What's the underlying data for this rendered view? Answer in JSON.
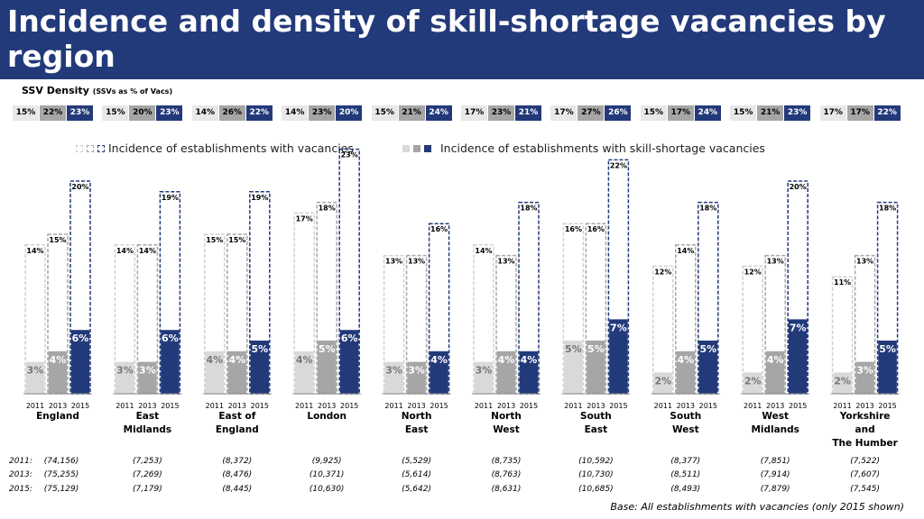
{
  "title": "Incidence and density of skill-shortage vacancies by region",
  "ssv_density": {
    "label": "SSV Density",
    "sublabel": "(SSVs as % of Vacs)",
    "groups": [
      [
        "15%",
        "22%",
        "23%"
      ],
      [
        "15%",
        "20%",
        "23%"
      ],
      [
        "14%",
        "26%",
        "22%"
      ],
      [
        "14%",
        "23%",
        "20%"
      ],
      [
        "15%",
        "21%",
        "24%"
      ],
      [
        "17%",
        "23%",
        "21%"
      ],
      [
        "17%",
        "27%",
        "26%"
      ],
      [
        "15%",
        "17%",
        "24%"
      ],
      [
        "15%",
        "21%",
        "23%"
      ],
      [
        "17%",
        "17%",
        "22%"
      ]
    ]
  },
  "legend": {
    "vacancies": "Incidence of establishments with vacancies",
    "ssv": "Incidence of establishments with skill-shortage vacancies"
  },
  "colors": {
    "title_bg": "#233a7a",
    "y2011": "#d9d9d9",
    "y2013": "#a6a6a6",
    "y2015": "#233a7a",
    "dashed_2011": "#d0d0d0",
    "dashed_2013": "#a6a6a6",
    "dashed_2015": "#233a7a"
  },
  "chart_data": {
    "type": "bar",
    "title": "Incidence and density of skill-shortage vacancies by region",
    "years": [
      "2011",
      "2013",
      "2015"
    ],
    "categories": [
      "England",
      "East Midlands",
      "East of England",
      "London",
      "North East",
      "North West",
      "South East",
      "South West",
      "West Midlands",
      "Yorkshire and The Humber"
    ],
    "category_lines": [
      [
        "England"
      ],
      [
        "East",
        "Midlands"
      ],
      [
        "East of",
        "England"
      ],
      [
        "London"
      ],
      [
        "North",
        "East"
      ],
      [
        "North",
        "West"
      ],
      [
        "South",
        "East"
      ],
      [
        "South",
        "West"
      ],
      [
        "West",
        "Midlands"
      ],
      [
        "Yorkshire",
        "and",
        "The Humber"
      ]
    ],
    "ylim": [
      0,
      25
    ],
    "series": [
      {
        "name": "Incidence of establishments with vacancies",
        "values": [
          [
            14,
            15,
            20
          ],
          [
            14,
            14,
            19
          ],
          [
            15,
            15,
            19
          ],
          [
            17,
            18,
            23
          ],
          [
            13,
            13,
            16
          ],
          [
            14,
            13,
            18
          ],
          [
            16,
            16,
            22
          ],
          [
            12,
            14,
            18
          ],
          [
            12,
            13,
            20
          ],
          [
            11,
            13,
            18
          ]
        ]
      },
      {
        "name": "Incidence of establishments with skill-shortage vacancies",
        "values": [
          [
            3,
            4,
            6
          ],
          [
            3,
            3,
            6
          ],
          [
            4,
            4,
            5
          ],
          [
            4,
            5,
            6
          ],
          [
            3,
            3,
            4
          ],
          [
            3,
            4,
            4
          ],
          [
            5,
            5,
            7
          ],
          [
            2,
            4,
            5
          ],
          [
            2,
            4,
            7
          ],
          [
            2,
            3,
            5
          ]
        ]
      }
    ]
  },
  "base": {
    "row_labels": [
      "2011:",
      "2013:",
      "2015:"
    ],
    "rows": [
      [
        "(74,156)",
        "(7,253)",
        "(8,372)",
        "(9,925)",
        "(5,529)",
        "(8,735)",
        "(10,592)",
        "(8,377)",
        "(7,851)",
        "(7,522)"
      ],
      [
        "(75,255)",
        "(7,269)",
        "(8,476)",
        "(10,371)",
        "(5,614)",
        "(8,763)",
        "(10,730)",
        "(8,511)",
        "(7,914)",
        "(7,607)"
      ],
      [
        "(75,129)",
        "(7,179)",
        "(8,445)",
        "(10,630)",
        "(5,642)",
        "(8,631)",
        "(10,685)",
        "(8,493)",
        "(7,879)",
        "(7,545)"
      ]
    ],
    "note": "Base: All establishments with vacancies (only 2015 shown)"
  }
}
